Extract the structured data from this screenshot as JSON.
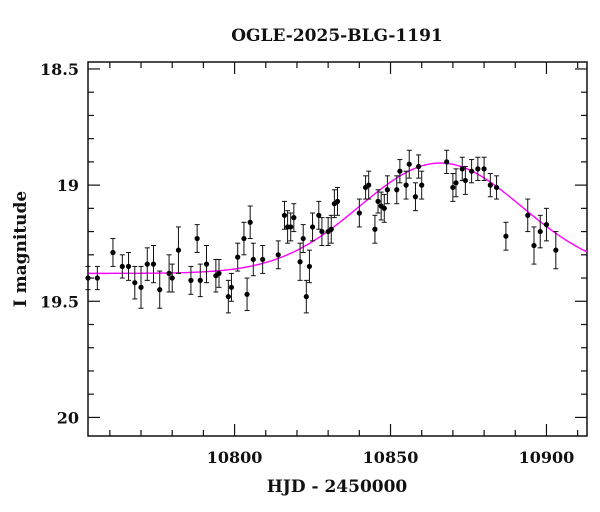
{
  "chart_data": {
    "type": "scatter",
    "title": "OGLE-2025-BLG-1191",
    "xlabel": "HJD - 2450000",
    "ylabel": "I magnitude",
    "xlim": [
      10753,
      10913
    ],
    "ylim": [
      20.08,
      18.47
    ],
    "y_inverted": true,
    "x_ticks": [
      10800,
      10850,
      10900
    ],
    "x_tick_labels": [
      "10800",
      "10850",
      "10900"
    ],
    "y_ticks": [
      18.5,
      19,
      19.5,
      20
    ],
    "y_tick_labels": [
      "18.5",
      "19",
      "19.5",
      "20"
    ],
    "grid": false,
    "colors": {
      "points": "#000000",
      "model": "#ff00ff"
    },
    "series": [
      {
        "type": "scatter",
        "points": [
          {
            "x": 10753,
            "y": 19.4,
            "err": 0.05
          },
          {
            "x": 10756,
            "y": 19.4,
            "err": 0.05
          },
          {
            "x": 10761,
            "y": 19.29,
            "err": 0.06
          },
          {
            "x": 10764,
            "y": 19.35,
            "err": 0.05
          },
          {
            "x": 10766,
            "y": 19.35,
            "err": 0.06
          },
          {
            "x": 10768,
            "y": 19.42,
            "err": 0.07
          },
          {
            "x": 10770,
            "y": 19.44,
            "err": 0.09
          },
          {
            "x": 10772,
            "y": 19.34,
            "err": 0.07
          },
          {
            "x": 10774,
            "y": 19.34,
            "err": 0.08
          },
          {
            "x": 10776,
            "y": 19.45,
            "err": 0.08
          },
          {
            "x": 10779,
            "y": 19.38,
            "err": 0.08
          },
          {
            "x": 10780,
            "y": 19.4,
            "err": 0.06
          },
          {
            "x": 10782,
            "y": 19.28,
            "err": 0.1
          },
          {
            "x": 10786,
            "y": 19.41,
            "err": 0.06
          },
          {
            "x": 10788,
            "y": 19.23,
            "err": 0.06
          },
          {
            "x": 10789,
            "y": 19.41,
            "err": 0.07
          },
          {
            "x": 10791,
            "y": 19.34,
            "err": 0.08
          },
          {
            "x": 10794,
            "y": 19.39,
            "err": 0.07
          },
          {
            "x": 10795,
            "y": 19.38,
            "err": 0.06
          },
          {
            "x": 10798,
            "y": 19.48,
            "err": 0.07
          },
          {
            "x": 10799,
            "y": 19.44,
            "err": 0.06
          },
          {
            "x": 10801,
            "y": 19.31,
            "err": 0.06
          },
          {
            "x": 10803,
            "y": 19.23,
            "err": 0.07
          },
          {
            "x": 10804,
            "y": 19.47,
            "err": 0.07
          },
          {
            "x": 10805,
            "y": 19.16,
            "err": 0.07
          },
          {
            "x": 10806,
            "y": 19.32,
            "err": 0.07
          },
          {
            "x": 10809,
            "y": 19.32,
            "err": 0.06
          },
          {
            "x": 10814,
            "y": 19.3,
            "err": 0.06
          },
          {
            "x": 10816,
            "y": 19.13,
            "err": 0.06
          },
          {
            "x": 10817,
            "y": 19.18,
            "err": 0.07
          },
          {
            "x": 10818,
            "y": 19.18,
            "err": 0.06
          },
          {
            "x": 10819,
            "y": 19.14,
            "err": 0.06
          },
          {
            "x": 10821,
            "y": 19.33,
            "err": 0.08
          },
          {
            "x": 10822,
            "y": 19.23,
            "err": 0.06
          },
          {
            "x": 10823,
            "y": 19.48,
            "err": 0.07
          },
          {
            "x": 10824,
            "y": 19.35,
            "err": 0.07
          },
          {
            "x": 10825,
            "y": 19.18,
            "err": 0.06
          },
          {
            "x": 10827,
            "y": 19.13,
            "err": 0.06
          },
          {
            "x": 10828,
            "y": 19.2,
            "err": 0.06
          },
          {
            "x": 10830,
            "y": 19.2,
            "err": 0.06
          },
          {
            "x": 10831,
            "y": 19.19,
            "err": 0.06
          },
          {
            "x": 10832,
            "y": 19.08,
            "err": 0.06
          },
          {
            "x": 10833,
            "y": 19.07,
            "err": 0.06
          },
          {
            "x": 10840,
            "y": 19.12,
            "err": 0.06
          },
          {
            "x": 10842,
            "y": 19.01,
            "err": 0.05
          },
          {
            "x": 10843,
            "y": 19.0,
            "err": 0.06
          },
          {
            "x": 10845,
            "y": 19.19,
            "err": 0.06
          },
          {
            "x": 10846,
            "y": 19.07,
            "err": 0.05
          },
          {
            "x": 10847,
            "y": 19.09,
            "err": 0.06
          },
          {
            "x": 10848,
            "y": 19.1,
            "err": 0.06
          },
          {
            "x": 10849,
            "y": 19.02,
            "err": 0.06
          },
          {
            "x": 10852,
            "y": 19.02,
            "err": 0.06
          },
          {
            "x": 10853,
            "y": 18.94,
            "err": 0.05
          },
          {
            "x": 10855,
            "y": 19.0,
            "err": 0.06
          },
          {
            "x": 10856,
            "y": 18.91,
            "err": 0.06
          },
          {
            "x": 10858,
            "y": 19.05,
            "err": 0.06
          },
          {
            "x": 10859,
            "y": 18.92,
            "err": 0.05
          },
          {
            "x": 10860,
            "y": 19.0,
            "err": 0.06
          },
          {
            "x": 10868,
            "y": 18.9,
            "err": 0.05
          },
          {
            "x": 10870,
            "y": 19.01,
            "err": 0.06
          },
          {
            "x": 10871,
            "y": 18.99,
            "err": 0.06
          },
          {
            "x": 10873,
            "y": 18.93,
            "err": 0.05
          },
          {
            "x": 10874,
            "y": 18.98,
            "err": 0.06
          },
          {
            "x": 10876,
            "y": 18.94,
            "err": 0.05
          },
          {
            "x": 10878,
            "y": 18.93,
            "err": 0.05
          },
          {
            "x": 10880,
            "y": 18.93,
            "err": 0.05
          },
          {
            "x": 10882,
            "y": 19.0,
            "err": 0.05
          },
          {
            "x": 10884,
            "y": 19.01,
            "err": 0.05
          },
          {
            "x": 10887,
            "y": 19.22,
            "err": 0.06
          },
          {
            "x": 10894,
            "y": 19.13,
            "err": 0.07
          },
          {
            "x": 10896,
            "y": 19.26,
            "err": 0.08
          },
          {
            "x": 10898,
            "y": 19.2,
            "err": 0.07
          },
          {
            "x": 10900,
            "y": 19.17,
            "err": 0.07
          },
          {
            "x": 10903,
            "y": 19.28,
            "err": 0.08
          }
        ]
      },
      {
        "type": "line",
        "model": {
          "u0_baseline": 19.38,
          "t0": 10866,
          "peak_amplitude": 0.475,
          "tE": 30,
          "rise_dt": 26
        }
      }
    ]
  }
}
